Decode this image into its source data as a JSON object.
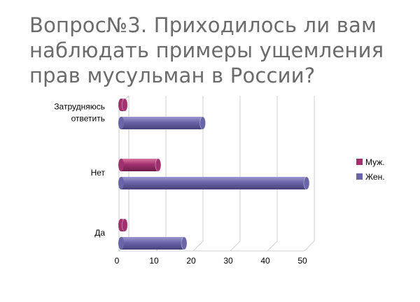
{
  "title_lines": [
    "Вопрос№3. Приходилось ли  вам",
    "наблюдать примеры ущемления",
    "прав мусульман  в  России?"
  ],
  "chart_data": {
    "type": "bar",
    "orientation": "horizontal",
    "categories": [
      [
        "Затрудняюсь",
        "ответить"
      ],
      [
        "Нет"
      ],
      [
        "Да"
      ]
    ],
    "series": [
      {
        "name": "Муж.",
        "values": [
          1,
          10,
          1
        ],
        "color": "#a0306e"
      },
      {
        "name": "Жен.",
        "values": [
          22,
          50,
          17
        ],
        "color": "#6a64a8"
      }
    ],
    "xlim": [
      0,
      50
    ],
    "xticks": [
      "0",
      "10",
      "20",
      "30",
      "40",
      "50"
    ],
    "grid": true,
    "legend": "right"
  }
}
